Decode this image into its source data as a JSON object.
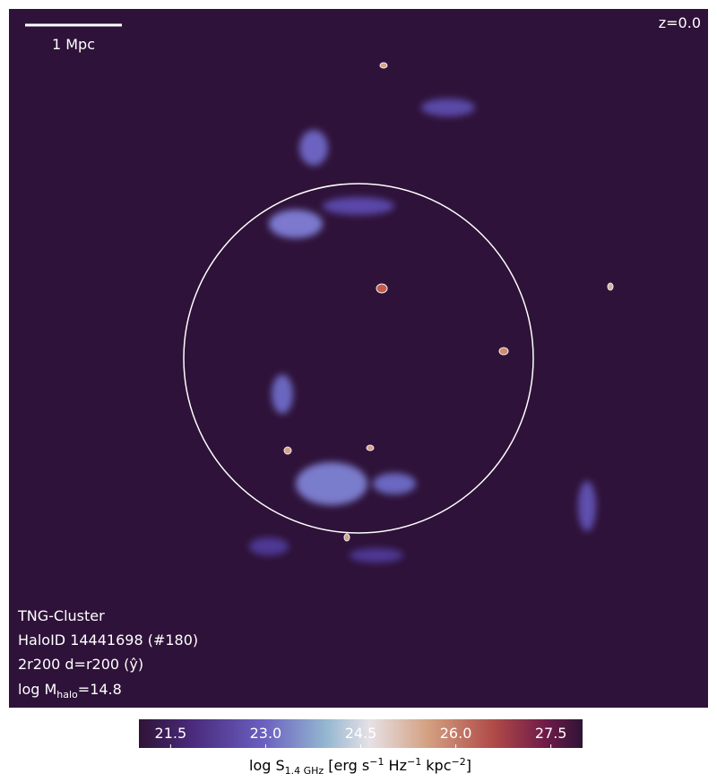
{
  "chart_data": {
    "type": "heatmap",
    "scale_label": "1 Mpc",
    "redshift": "z=0.0",
    "annotations": [
      "TNG-Cluster",
      "HaloID 14441698 (#180)",
      "2r200 d=r200 (ŷ)"
    ],
    "mass_label": [
      "log M",
      "halo",
      "=14.8"
    ],
    "colorbar_label": [
      "log S",
      "1.4 GHz",
      " [erg s",
      "−1",
      " Hz",
      "−1",
      " kpc",
      "−2",
      "]"
    ],
    "clim": [
      21.0,
      28.0
    ],
    "cticks": [
      21.5,
      {
        "value": 23,
        "label": "23.0"
      },
      24.5,
      {
        "value": 26,
        "label": "26.0"
      },
      27.5
    ]
  }
}
